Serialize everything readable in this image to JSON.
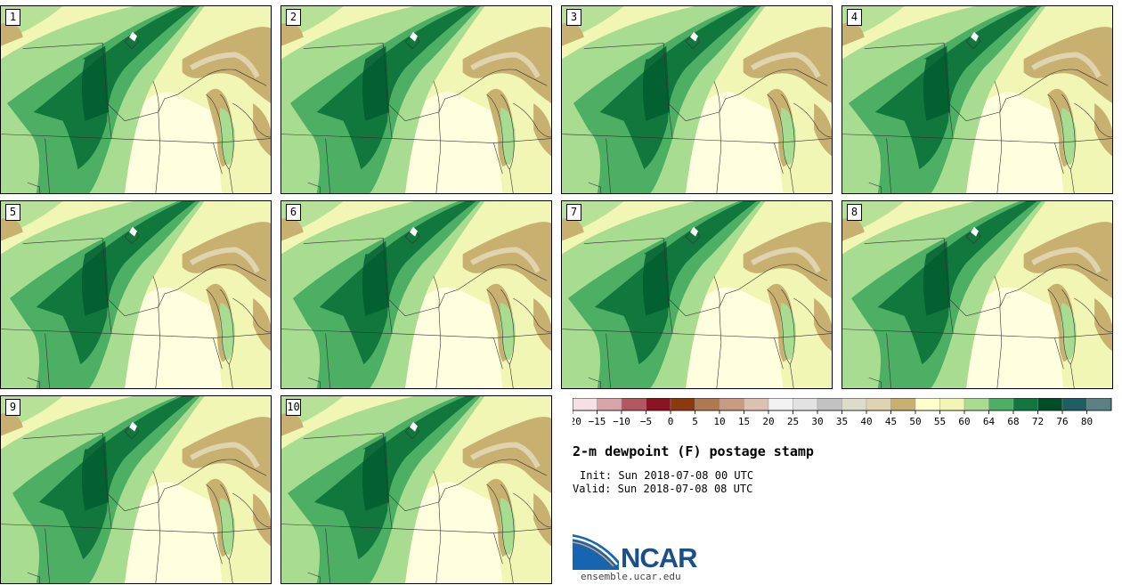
{
  "panels": [
    {
      "label": "1"
    },
    {
      "label": "2"
    },
    {
      "label": "3"
    },
    {
      "label": "4"
    },
    {
      "label": "5"
    },
    {
      "label": "6"
    },
    {
      "label": "7"
    },
    {
      "label": "8"
    },
    {
      "label": "9"
    },
    {
      "label": "10"
    }
  ],
  "colorbar": {
    "ticks": [
      "-20",
      "-15",
      "-10",
      "-5",
      "0",
      "5",
      "10",
      "15",
      "20",
      "25",
      "30",
      "35",
      "40",
      "45",
      "50",
      "55",
      "60",
      "64",
      "68",
      "72",
      "76",
      "80"
    ],
    "colors": [
      "#f5e1e5",
      "#d8a4a8",
      "#b3575f",
      "#8a1420",
      "#8b3a10",
      "#b07850",
      "#c89a80",
      "#dcc0b0",
      "#f2f2f2",
      "#e2e2e2",
      "#c2c2c2",
      "#dcdcc8",
      "#e0d4b0",
      "#c8b070",
      "#ffffcc",
      "#f2f6b4",
      "#a8dc90",
      "#4caf64",
      "#11773c",
      "#004d28",
      "#1e5e64",
      "#5a8282"
    ]
  },
  "title": "2-m dewpoint (F) postage stamp",
  "init_line": "Init: Sun 2018-07-08 00 UTC",
  "valid_line": "Valid: Sun 2018-07-08 08 UTC",
  "logo": {
    "text": "NCAR",
    "site": "ensemble.ucar.edu",
    "color": "#1a4f8a"
  },
  "map_colors": {
    "c50": "#ffffe0",
    "c55": "#f2f6b4",
    "c60": "#a8dc90",
    "c64": "#4caf64",
    "c68": "#11773c",
    "c72": "#005a2e",
    "brown": "#c8b070",
    "tan": "#e0d4b0"
  }
}
